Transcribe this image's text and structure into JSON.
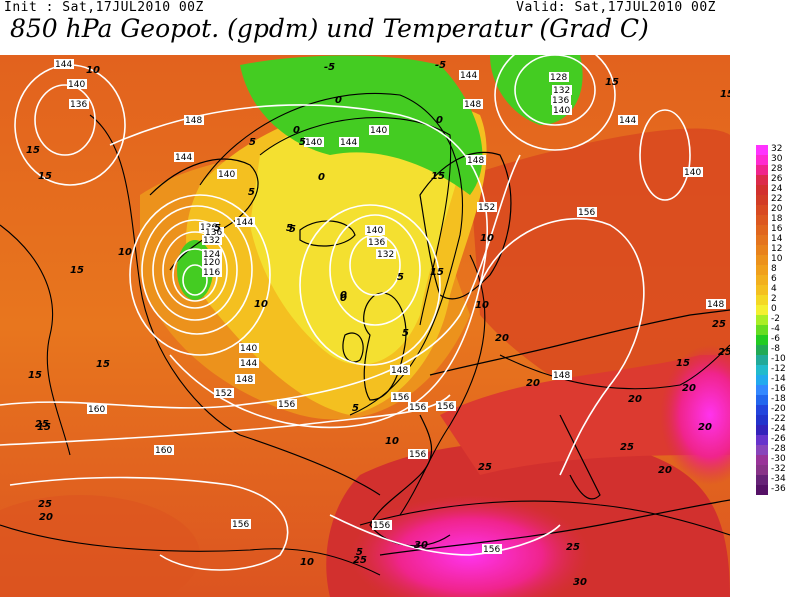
{
  "header": {
    "init": "Init : Sat,17JUL2010 00Z",
    "valid": "Valid: Sat,17JUL2010 00Z",
    "title": "850 hPa Geopot. (gpdm) und Temperatur (Grad C)"
  },
  "legend": {
    "labels": [
      "32",
      "30",
      "28",
      "26",
      "24",
      "22",
      "20",
      "18",
      "16",
      "14",
      "12",
      "10",
      "8",
      "6",
      "4",
      "2",
      "0",
      "-2",
      "-4",
      "-6",
      "-8",
      "-10",
      "-12",
      "-14",
      "-16",
      "-18",
      "-20",
      "-22",
      "-24",
      "-26",
      "-28",
      "-30",
      "-32",
      "-34",
      "-36"
    ],
    "colors": [
      "#ff33ff",
      "#ff2ad0",
      "#f0248c",
      "#dc2a4a",
      "#d2302e",
      "#d23c26",
      "#d84a22",
      "#dc5820",
      "#e0661e",
      "#e4741e",
      "#e8821c",
      "#ec921c",
      "#f0a01c",
      "#f2b01e",
      "#f4c020",
      "#f4d824",
      "#f4f030",
      "#aaee26",
      "#66dd22",
      "#22cc22",
      "#22aa55",
      "#22aa99",
      "#22bbcc",
      "#22aaee",
      "#3388ff",
      "#2266ee",
      "#2244dd",
      "#2233cc",
      "#3322bb",
      "#6633cc",
      "#8844bb",
      "#993399",
      "#883388",
      "#662277",
      "#551166"
    ]
  },
  "geopotential_labels": [
    "144",
    "140",
    "136",
    "148",
    "144",
    "140",
    "136",
    "128",
    "132",
    "136",
    "140",
    "144",
    "140",
    "148",
    "148",
    "144",
    "140",
    "144",
    "140",
    "136",
    "132",
    "124",
    "120",
    "116",
    "144",
    "140",
    "136",
    "132",
    "152",
    "156",
    "148",
    "140",
    "144",
    "148",
    "152",
    "156",
    "156",
    "160",
    "160",
    "156",
    "156",
    "156",
    "156",
    "156",
    "156",
    "148",
    "148"
  ],
  "temperature_labels": [
    "10",
    "15",
    "15",
    "10",
    "15",
    "5",
    "0",
    "-5",
    "-5",
    "5",
    "0",
    "0",
    "5",
    "0",
    "5",
    "5",
    "10",
    "15",
    "10",
    "5",
    "0",
    "5",
    "5",
    "10",
    "5",
    "0",
    "15",
    "10",
    "15",
    "20",
    "20",
    "20",
    "15",
    "25",
    "25",
    "20",
    "20",
    "20",
    "25",
    "25",
    "25",
    "25",
    "30",
    "30",
    "15",
    "10",
    "5",
    "15",
    "15",
    "15",
    "20",
    "25",
    "25"
  ]
}
